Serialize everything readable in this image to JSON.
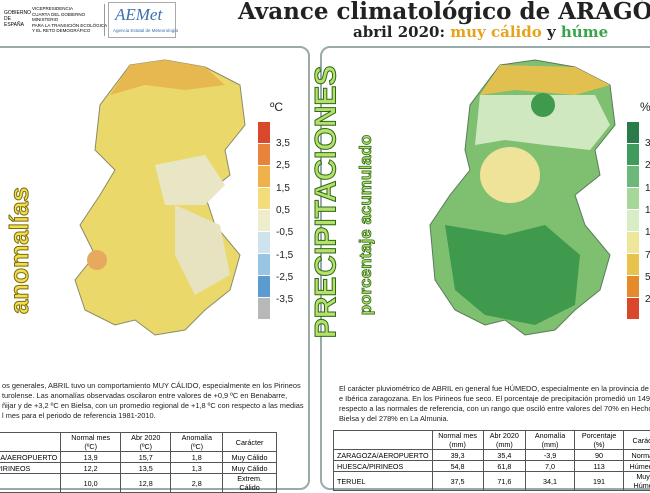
{
  "header": {
    "gov_lines": [
      "VICEPRESIDENCIA",
      "CUARTA DEL GOBIERNO",
      "MINISTERIO",
      "PARA LA TRANSICIÓN ECOLÓGICA",
      "Y EL RETO DEMOGRÁFICO"
    ],
    "gov": "GOBIERNO DE ESPAÑA",
    "logo": "AEMet",
    "logo_sub": "Agencia Estatal de Meteorología",
    "title": "Avance climatológico de ARAGÓ",
    "subtitle_a": "abril 2020:",
    "subtitle_b": "muy cálido",
    "subtitle_c": "y",
    "subtitle_d": "húme"
  },
  "temperature": {
    "side_label": "anomalías",
    "unit": "ºC",
    "legend": [
      "3,5",
      "2,5",
      "1,5",
      "0,5",
      "-0,5",
      "-1,5",
      "-2,5",
      "-3,5"
    ],
    "text": [
      "os generales, ABRIL tuvo un comportamiento MUY CÁLIDO, especialmente en los Pirineos",
      "turolense. Las anomalías observadas oscilaron entre valores de +0,9 ºC en Benabarre,",
      "ñijar y de +3,2 ºC en Bielsa, con un promedio regional de +1,8 ºC con respecto a las medias",
      "l mes para el periodo de referencia 1981-2010."
    ],
    "table": {
      "header": [
        "",
        "Normal mes (ºC)",
        "Abr 2020 (ºC)",
        "Anomalía (ºC)",
        "Carácter"
      ],
      "rows": [
        [
          "ZA/AEROPUERTO",
          "13,9",
          "15,7",
          "1,8",
          "Muy Cálido"
        ],
        [
          "PIRINEOS",
          "12,2",
          "13,5",
          "1,3",
          "Muy Cálido"
        ],
        [
          "",
          "10,0",
          "12,8",
          "2,8",
          "Extrem. Cálido"
        ]
      ]
    }
  },
  "precipitation": {
    "side_label": "PRECIPITACIONES",
    "side_sub": "porcentaje acumulado",
    "unit": "%",
    "legend": [
      "3",
      "2",
      "1",
      "1",
      "1",
      "7",
      "5",
      "2"
    ],
    "text": [
      "El carácter pluviométrico de ABRIL en general fue HÚMEDO, especialmente en la provincia de Ter",
      "e Ibérica zaragozana. En los Pirineos fue seco. El porcentaje de precipitación promedió un 149% d",
      "respecto a las normales de referencia, con un rango que osciló entre valores del 70% en Hecho y",
      "Bielsa y del 278% en La Almunia."
    ],
    "table": {
      "header": [
        "",
        "Normal mes (mm)",
        "Abr 2020 (mm)",
        "Anomalía (mm)",
        "Porcentaje (%)",
        "Caráct"
      ],
      "rows": [
        [
          "ZARAGOZA/AEROPUERTO",
          "39,3",
          "35,4",
          "-3,9",
          "90",
          "Normal"
        ],
        [
          "HUESCA/PIRINEOS",
          "54,8",
          "61,8",
          "7,0",
          "113",
          "Húmedo"
        ],
        [
          "TERUEL",
          "37,5",
          "71,6",
          "34,1",
          "191",
          "Muy Húme"
        ]
      ]
    }
  }
}
